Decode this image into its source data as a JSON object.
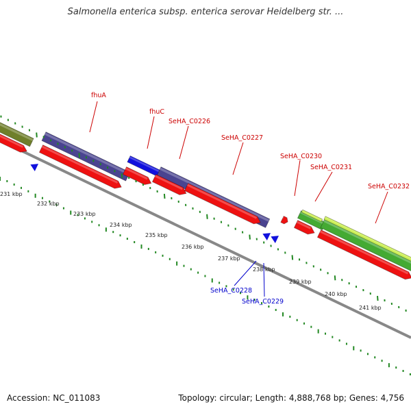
{
  "header": {
    "title": "Salmonella enterica subsp. enterica serovar Heidelberg str. ..."
  },
  "footer": {
    "accession": "Accession: NC_011083",
    "topology": "Topology: circular; Length: 4,888,768 bp; Genes: 4,756"
  },
  "colors": {
    "forward_label": "#cc0000",
    "reverse_label": "#0000cc",
    "cds_red": "#ee1111",
    "gene_purple": "#4a4490",
    "gene_blue": "#1111dd",
    "gene_green": "#44aa33",
    "gene_lightgreen": "#ccf055",
    "gene_olive": "#6f7f2a",
    "backbone": "#888888",
    "tick_green": "#228822"
  },
  "genes_forward": [
    {
      "name": "fhuA"
    },
    {
      "name": "fhuC"
    },
    {
      "name": "SeHA_C0226"
    },
    {
      "name": "SeHA_C0227"
    },
    {
      "name": "SeHA_C0230"
    },
    {
      "name": "SeHA_C0231"
    },
    {
      "name": "SeHA_C0232"
    }
  ],
  "genes_reverse": [
    {
      "name": "SeHA_C0228"
    },
    {
      "name": "SeHA_C0229"
    }
  ],
  "kbp_ticks": [
    "231 kbp",
    "232 kbp",
    "233 kbp",
    "234 kbp",
    "235 kbp",
    "236 kbp",
    "237 kbp",
    "238 kbp",
    "239 kbp",
    "240 kbp",
    "241 kbp"
  ]
}
